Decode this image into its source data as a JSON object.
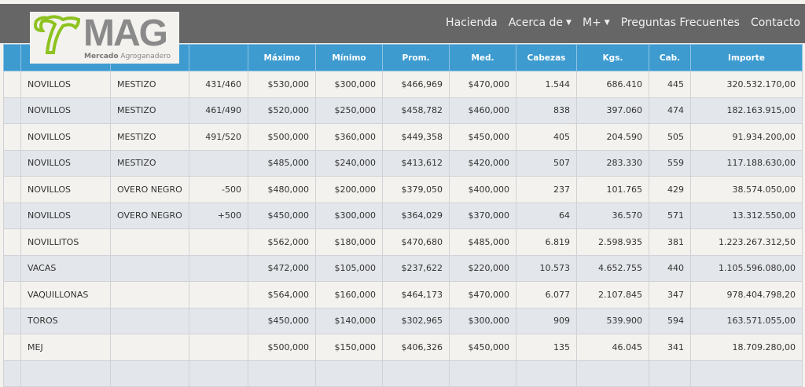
{
  "brand": {
    "logo_text": "MAG",
    "logo_sub_bold": "Mercado",
    "logo_sub": "Agroganadero",
    "logo_color": "#8dc21f"
  },
  "nav": {
    "items": [
      {
        "label": "Hacienda"
      },
      {
        "label": "Acerca de",
        "dropdown": true
      },
      {
        "label": "M+",
        "dropdown": true
      },
      {
        "label": "Preguntas Frecuentes"
      },
      {
        "label": "Contacto"
      }
    ]
  },
  "table": {
    "headers": [
      "",
      "",
      "",
      "",
      "Máximo",
      "Mínimo",
      "Prom.",
      "Med.",
      "Cabezas",
      "Kgs.",
      "Cab.",
      "Importe"
    ],
    "rows": [
      [
        "",
        "NOVILLOS",
        "MESTIZO",
        "431/460",
        "$530,000",
        "$300,000",
        "$466,969",
        "$470,000",
        "1.544",
        "686.410",
        "445",
        "320.532.170,00"
      ],
      [
        "",
        "NOVILLOS",
        "MESTIZO",
        "461/490",
        "$520,000",
        "$250,000",
        "$458,782",
        "$460,000",
        "838",
        "397.060",
        "474",
        "182.163.915,00"
      ],
      [
        "",
        "NOVILLOS",
        "MESTIZO",
        "491/520",
        "$500,000",
        "$360,000",
        "$449,358",
        "$450,000",
        "405",
        "204.590",
        "505",
        "91.934.200,00"
      ],
      [
        "",
        "NOVILLOS",
        "MESTIZO",
        "",
        "$485,000",
        "$240,000",
        "$413,612",
        "$420,000",
        "507",
        "283.330",
        "559",
        "117.188.630,00"
      ],
      [
        "",
        "NOVILLOS",
        "OVERO NEGRO",
        "-500",
        "$480,000",
        "$200,000",
        "$379,050",
        "$400,000",
        "237",
        "101.765",
        "429",
        "38.574.050,00"
      ],
      [
        "",
        "NOVILLOS",
        "OVERO NEGRO",
        "+500",
        "$450,000",
        "$300,000",
        "$364,029",
        "$370,000",
        "64",
        "36.570",
        "571",
        "13.312.550,00"
      ],
      [
        "",
        "NOVILLITOS",
        "",
        "",
        "$562,000",
        "$180,000",
        "$470,680",
        "$485,000",
        "6.819",
        "2.598.935",
        "381",
        "1.223.267.312,50"
      ],
      [
        "",
        "VACAS",
        "",
        "",
        "$472,000",
        "$105,000",
        "$237,622",
        "$220,000",
        "10.573",
        "4.652.755",
        "440",
        "1.105.596.080,00"
      ],
      [
        "",
        "VAQUILLONAS",
        "",
        "",
        "$564,000",
        "$160,000",
        "$464,173",
        "$470,000",
        "6.077",
        "2.107.845",
        "347",
        "978.404.798,20"
      ],
      [
        "",
        "TOROS",
        "",
        "",
        "$450,000",
        "$140,000",
        "$302,965",
        "$300,000",
        "909",
        "539.900",
        "594",
        "163.571.055,00"
      ],
      [
        "",
        "MEJ",
        "",
        "",
        "$500,000",
        "$150,000",
        "$406,326",
        "$450,000",
        "135",
        "46.045",
        "341",
        "18.709.280,00"
      ],
      [
        "",
        "",
        "",
        "",
        "",
        "",
        "",
        "",
        "",
        "",
        "",
        ""
      ]
    ]
  }
}
